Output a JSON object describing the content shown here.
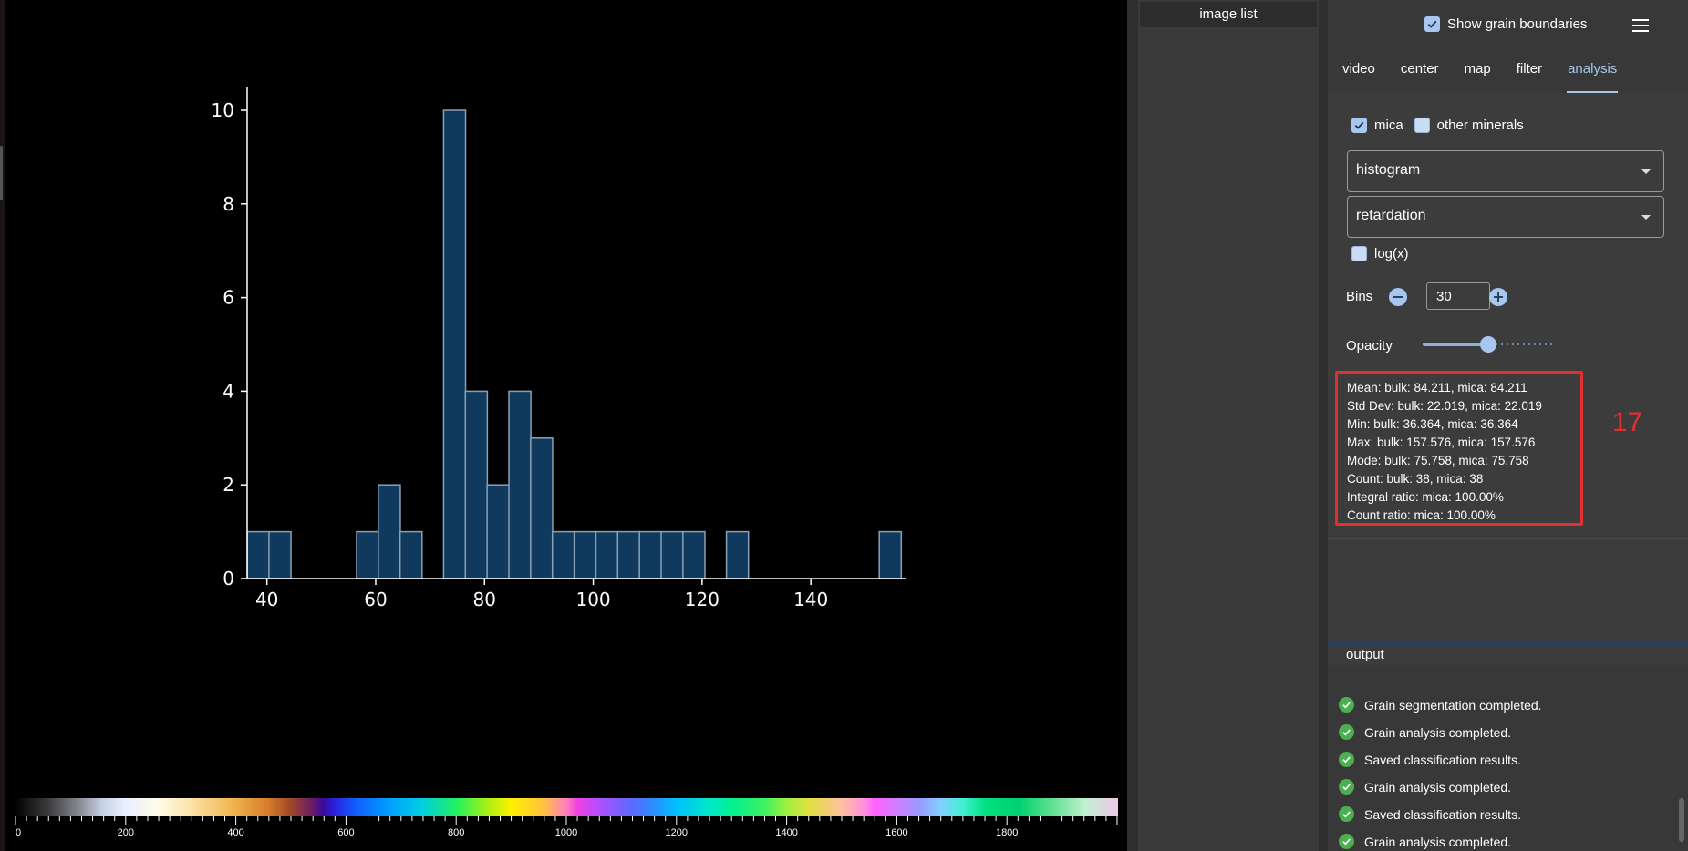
{
  "image_list": {
    "title": "image list"
  },
  "header": {
    "show_grain_boundaries_label": "Show grain boundaries",
    "show_grain_boundaries_checked": true,
    "menu_icon": "hamburger-menu-icon"
  },
  "tabs": [
    {
      "label": "video",
      "active": false
    },
    {
      "label": "center",
      "active": false
    },
    {
      "label": "map",
      "active": false
    },
    {
      "label": "filter",
      "active": false
    },
    {
      "label": "analysis",
      "active": true
    }
  ],
  "analysis": {
    "mica_label": "mica",
    "mica_checked": true,
    "other_minerals_label": "other minerals",
    "other_minerals_checked": false,
    "plot_type": "histogram",
    "property": "retardation",
    "logx_label": "log(x)",
    "logx_checked": false,
    "bins_label": "Bins",
    "bins_value": "30",
    "opacity_label": "Opacity",
    "opacity_value": 0.5,
    "stats": [
      "Mean: bulk: 84.211, mica: 84.211",
      "Std Dev: bulk: 22.019, mica: 22.019",
      "Min: bulk: 36.364, mica: 36.364",
      "Max: bulk: 157.576, mica: 157.576",
      "Mode: bulk: 75.758, mica: 75.758",
      "Count: bulk: 38, mica: 38",
      "Integral ratio: mica: 100.00%",
      "Count ratio: mica: 100.00%"
    ],
    "annotation": "17"
  },
  "output": {
    "title": "output",
    "messages": [
      "Grain segmentation completed.",
      "Grain analysis completed.",
      "Saved classification results.",
      "Grain analysis completed.",
      "Saved classification results.",
      "Grain analysis completed."
    ]
  },
  "colorbar": {
    "labels": [
      "0",
      "200",
      "400",
      "600",
      "800",
      "1000",
      "1200",
      "1400",
      "1600",
      "1800"
    ],
    "min": 0,
    "max": 2000
  },
  "colors": {
    "accent": "#a7c7ef",
    "bar_fill": "#0f3a5e",
    "bar_edge": "#8aa0b4",
    "highlight": "#e03030",
    "success": "#4caf50"
  },
  "chart_data": {
    "type": "bar",
    "x": [
      38.4,
      42.4,
      46.4,
      50.5,
      54.5,
      58.5,
      62.5,
      66.5,
      70.5,
      74.5,
      78.5,
      82.5,
      86.5,
      90.5,
      94.5,
      98.5,
      102.5,
      106.5,
      110.5,
      114.5,
      118.5,
      122.5,
      126.5,
      130.5,
      134.5,
      138.5,
      142.6,
      146.6,
      150.6,
      154.6
    ],
    "values": [
      1,
      1,
      0,
      0,
      0,
      1,
      2,
      1,
      0,
      10,
      4,
      2,
      4,
      3,
      1,
      1,
      1,
      1,
      1,
      1,
      1,
      0,
      1,
      0,
      0,
      0,
      0,
      0,
      0,
      1
    ],
    "bin_width": 4.04,
    "xlim": [
      36.364,
      157.576
    ],
    "ylim": [
      0,
      10
    ],
    "xticks": [
      40,
      60,
      80,
      100,
      120,
      140
    ],
    "yticks": [
      0,
      2,
      4,
      6,
      8,
      10
    ],
    "title": "",
    "xlabel": "",
    "ylabel": "",
    "grid": false
  }
}
